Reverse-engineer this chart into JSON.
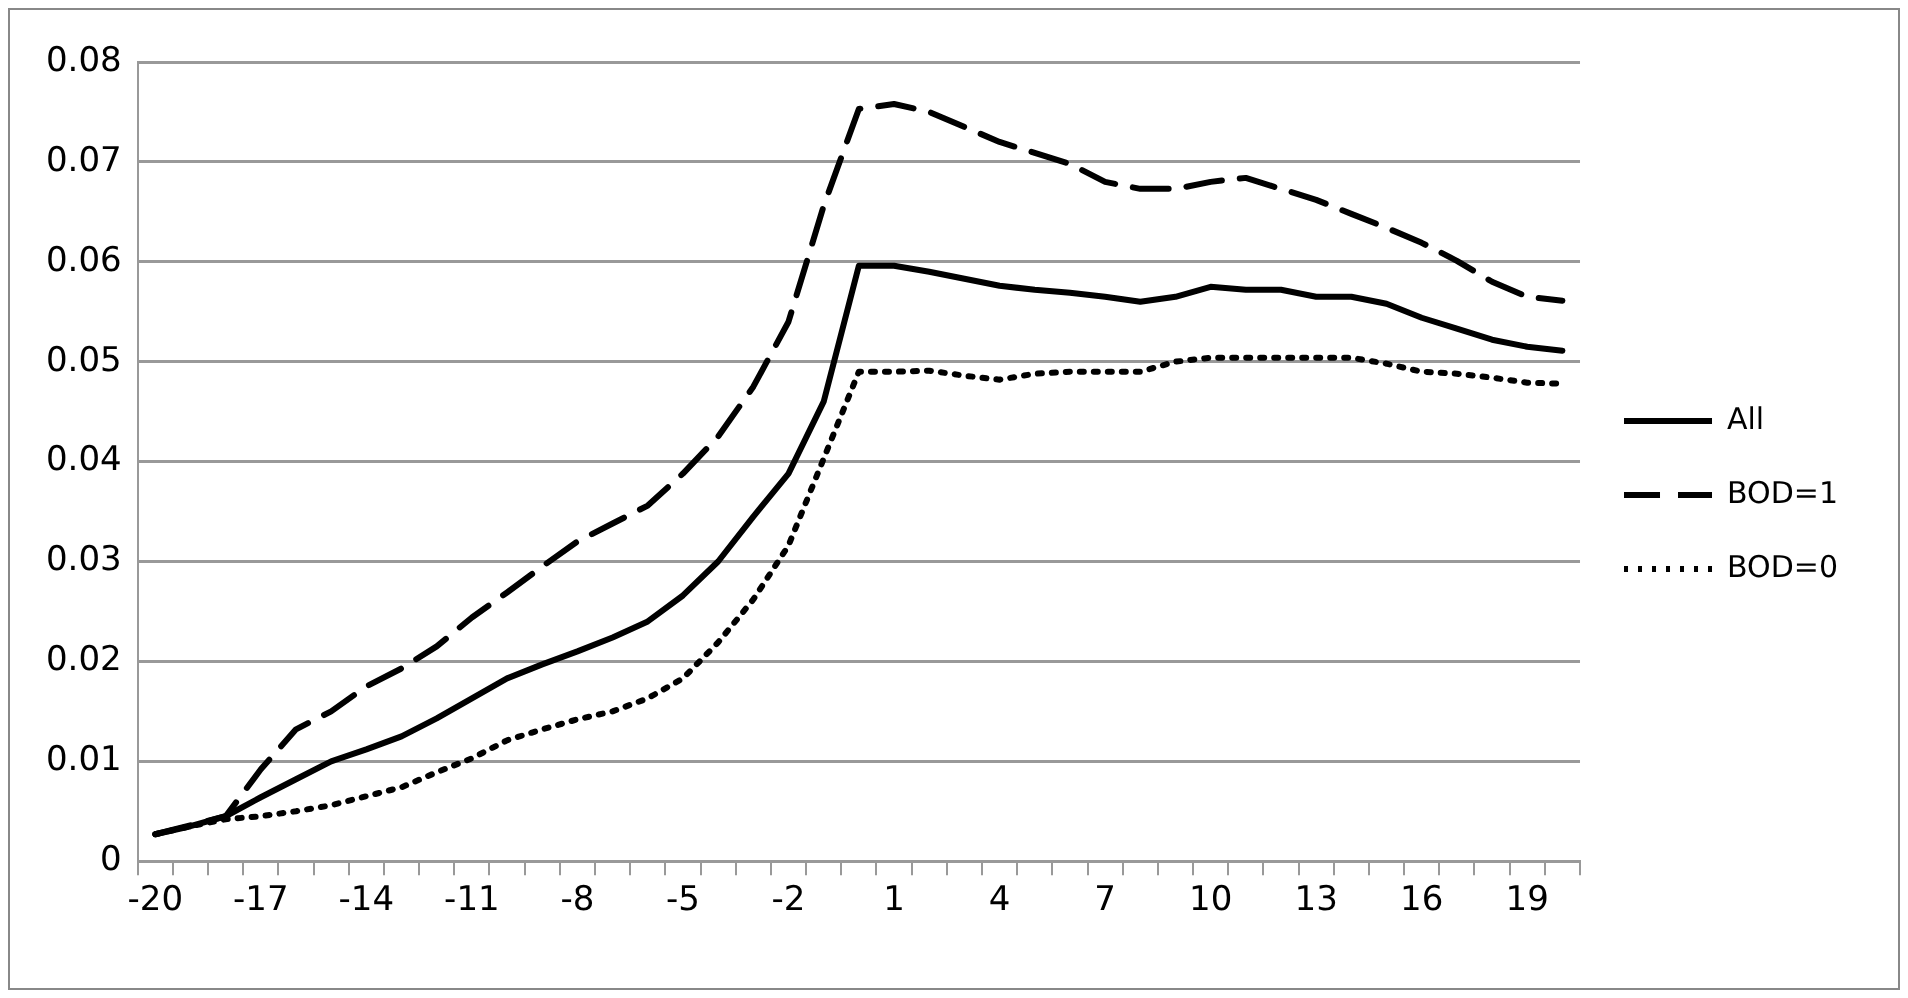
{
  "chart_data": {
    "type": "line",
    "categories": [
      "-20",
      null,
      null,
      "-17",
      null,
      null,
      "-14",
      null,
      null,
      "-11",
      null,
      null,
      "-8",
      null,
      null,
      "-5",
      null,
      null,
      "-2",
      null,
      null,
      "1",
      null,
      null,
      "4",
      null,
      null,
      "7",
      null,
      null,
      "10",
      null,
      null,
      "13",
      null,
      null,
      "16",
      null,
      null,
      "19",
      null
    ],
    "series": [
      {
        "name": "All",
        "color": "#000000",
        "line_style": "solid",
        "values": [
          0.0027,
          0.0035,
          0.0045,
          0.0064,
          0.0082,
          0.01,
          0.0112,
          0.0125,
          0.0143,
          0.0163,
          0.0183,
          0.0197,
          0.021,
          0.0224,
          0.024,
          0.0266,
          0.03,
          0.0345,
          0.0388,
          0.046,
          0.0596,
          0.0596,
          0.059,
          0.0583,
          0.0576,
          0.0572,
          0.0569,
          0.0565,
          0.056,
          0.0565,
          0.0575,
          0.0572,
          0.0572,
          0.0565,
          0.0565,
          0.0558,
          0.0544,
          0.0533,
          0.0522,
          0.0515,
          0.0511
        ]
      },
      {
        "name": "BOD=1",
        "color": "#000000",
        "line_style": "dashed",
        "values": [
          0.0027,
          0.0036,
          0.0045,
          0.0092,
          0.0132,
          0.015,
          0.0175,
          0.0193,
          0.0215,
          0.0244,
          0.0269,
          0.0295,
          0.032,
          0.0338,
          0.0356,
          0.0388,
          0.0425,
          0.0475,
          0.054,
          0.0656,
          0.0753,
          0.0758,
          0.075,
          0.0735,
          0.072,
          0.0709,
          0.0698,
          0.068,
          0.0673,
          0.0673,
          0.068,
          0.0684,
          0.0673,
          0.0662,
          0.0648,
          0.0634,
          0.0619,
          0.0601,
          0.058,
          0.0565,
          0.0561
        ]
      },
      {
        "name": "BOD=0",
        "color": "#000000",
        "line_style": "dotted",
        "values": [
          0.0027,
          0.0035,
          0.0042,
          0.0045,
          0.005,
          0.0056,
          0.0065,
          0.0074,
          0.0089,
          0.0103,
          0.0121,
          0.0132,
          0.0142,
          0.015,
          0.0163,
          0.0183,
          0.0219,
          0.0262,
          0.0316,
          0.0403,
          0.049,
          0.049,
          0.0491,
          0.0486,
          0.0482,
          0.0488,
          0.049,
          0.049,
          0.049,
          0.05,
          0.0504,
          0.0504,
          0.0504,
          0.0504,
          0.0504,
          0.0498,
          0.049,
          0.0488,
          0.0484,
          0.0479,
          0.0478
        ]
      }
    ],
    "ylim": [
      0,
      0.08
    ],
    "yticks": [
      0,
      0.01,
      0.02,
      0.03,
      0.04,
      0.05,
      0.06,
      0.07,
      0.08
    ],
    "grid": "y",
    "legend": "right",
    "marker": "none"
  }
}
